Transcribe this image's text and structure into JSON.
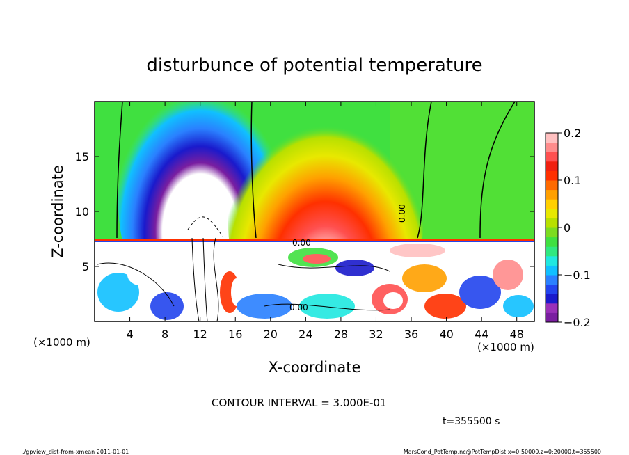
{
  "chart_data": {
    "type": "heatmap",
    "title": "disturbunce of potential temperature",
    "xlabel": "X-coordinate",
    "ylabel": "Z-coordinate",
    "x_unit": "(×1000 m)",
    "y_unit": "(×1000 m)",
    "xlim": [
      0,
      50
    ],
    "ylim": [
      0,
      20
    ],
    "x_ticks": [
      4,
      8,
      12,
      16,
      20,
      24,
      28,
      32,
      36,
      40,
      44,
      48
    ],
    "y_ticks": [
      5,
      10,
      15
    ],
    "colorbar": {
      "min": -0.2,
      "max": 0.2,
      "ticks": [
        {
          "value": 0.2,
          "label": "0.2"
        },
        {
          "value": 0.1,
          "label": "0.1"
        },
        {
          "value": 0,
          "label": "0"
        },
        {
          "value": -0.1,
          "label": "−0.1"
        },
        {
          "value": -0.2,
          "label": "−0.2"
        }
      ],
      "colors": [
        "#7a1ea0",
        "#9a30b8",
        "#1a1acc",
        "#2244ee",
        "#2a80ff",
        "#10c0ff",
        "#20e8e0",
        "#30e880",
        "#40e040",
        "#7cdc20",
        "#b8e000",
        "#e8e800",
        "#ffd000",
        "#ffa000",
        "#ff6a00",
        "#ff3000",
        "#f02010",
        "#ff5050",
        "#ff8c8c",
        "#ffc0c0"
      ]
    },
    "contour_labels": [
      "0.00",
      "0.00",
      "0.00"
    ],
    "contour_interval_label": "CONTOUR INTERVAL = 3.000E-01",
    "time_label": "t=355500 s"
  },
  "footer": {
    "left": "./gpview_dist-from-xmean  2011-01-01",
    "right": "MarsCond_PotTemp.nc@PotTempDist,x=0:50000,z=0:20000,t=355500"
  }
}
